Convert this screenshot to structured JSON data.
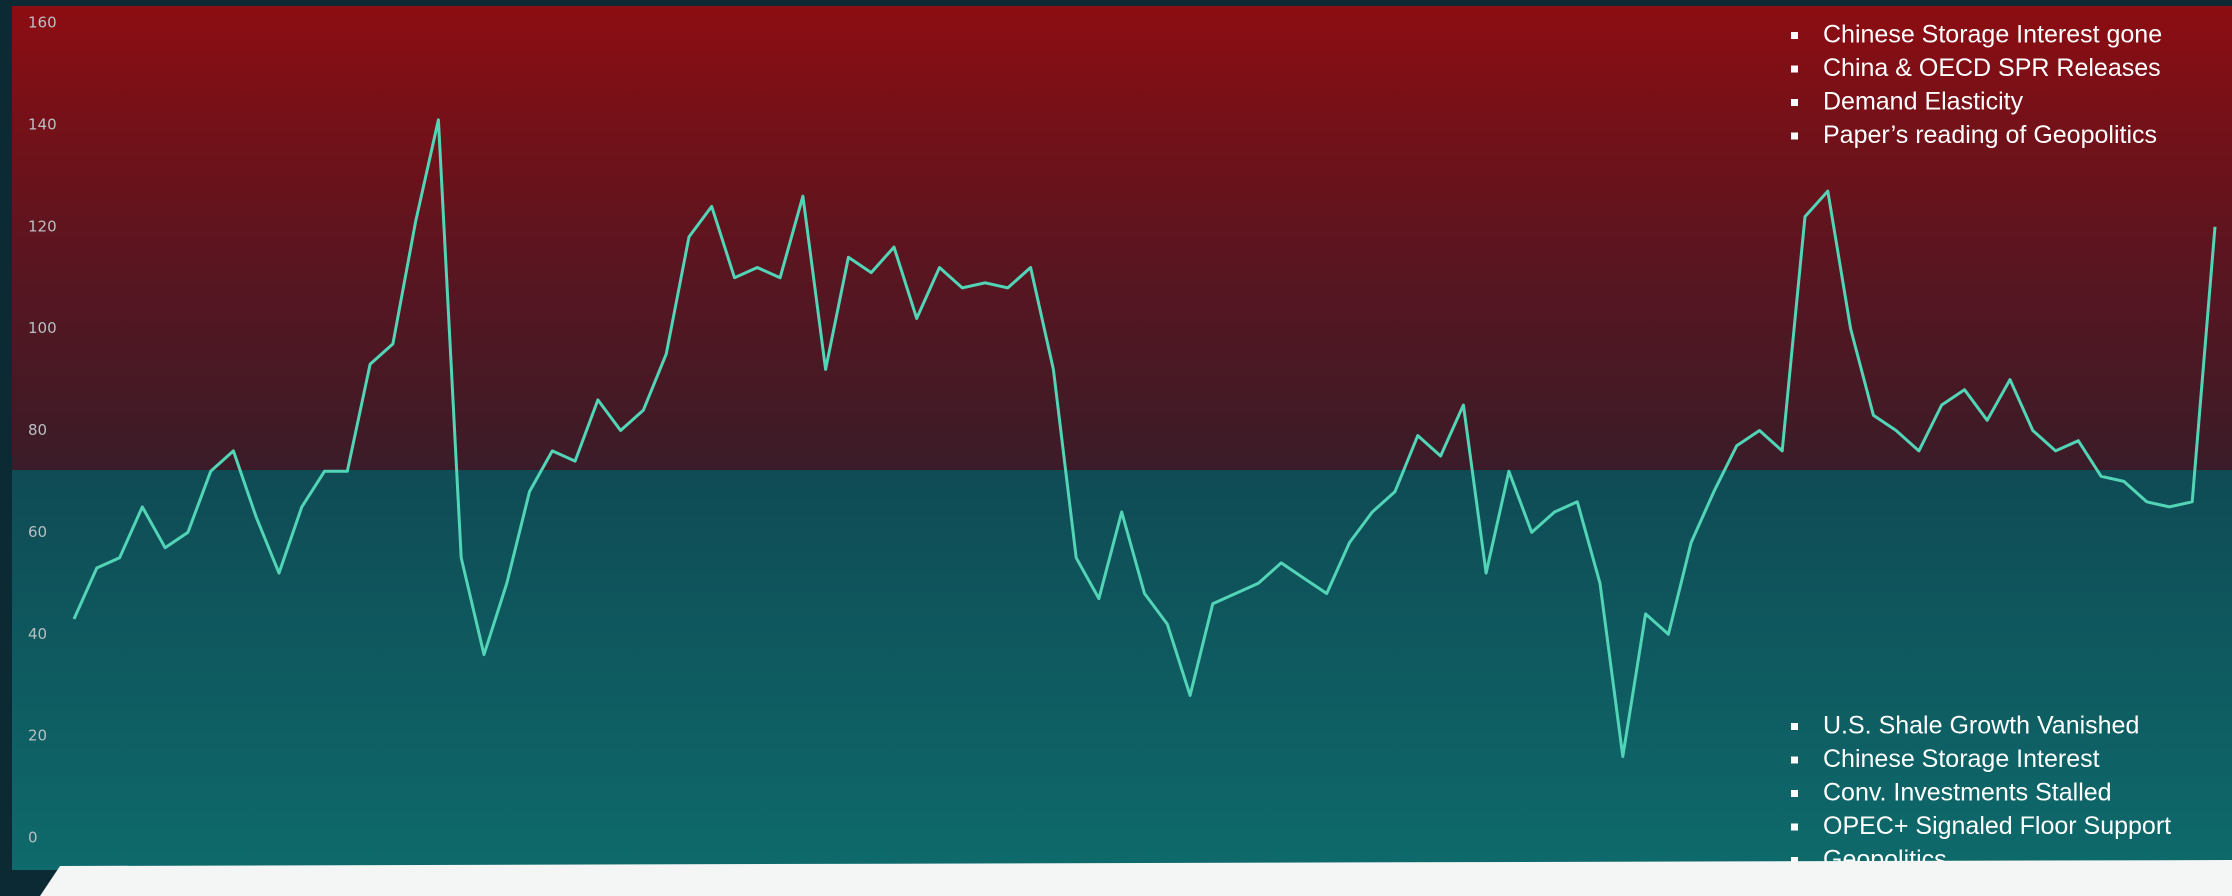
{
  "chart_data": {
    "type": "line",
    "ylim": [
      0,
      160
    ],
    "yticks": [
      0,
      20,
      40,
      60,
      80,
      100,
      120,
      140,
      160
    ],
    "series": [
      {
        "color": "#52d4b6",
        "values": [
          43,
          53,
          55,
          65,
          57,
          60,
          72,
          76,
          63,
          52,
          65,
          72,
          72,
          93,
          97,
          121,
          141,
          55,
          36,
          50,
          68,
          76,
          74,
          86,
          80,
          84,
          95,
          118,
          124,
          110,
          112,
          110,
          126,
          92,
          114,
          111,
          116,
          102,
          112,
          108,
          109,
          108,
          112,
          92,
          55,
          47,
          64,
          48,
          42,
          28,
          46,
          48,
          50,
          54,
          51,
          48,
          58,
          64,
          68,
          79,
          75,
          85,
          52,
          72,
          60,
          64,
          66,
          50,
          16,
          44,
          40,
          58,
          68,
          77,
          80,
          76,
          122,
          127,
          100,
          83,
          80,
          76,
          85,
          88,
          82,
          90,
          80,
          76,
          78,
          71,
          70,
          66,
          65,
          66,
          120
        ]
      }
    ],
    "annotations": [
      [
        "Chinese Storage Interest gone",
        "China & OECD SPR Releases",
        "Demand Elasticity",
        "Paper’s reading of Geopolitics"
      ],
      [
        "U.S. Shale Growth Vanished",
        "Chinese Storage Interest",
        "Conv. Investments Stalled",
        "OPEC+ Signaled Floor Support",
        "Geopolitics"
      ]
    ]
  }
}
